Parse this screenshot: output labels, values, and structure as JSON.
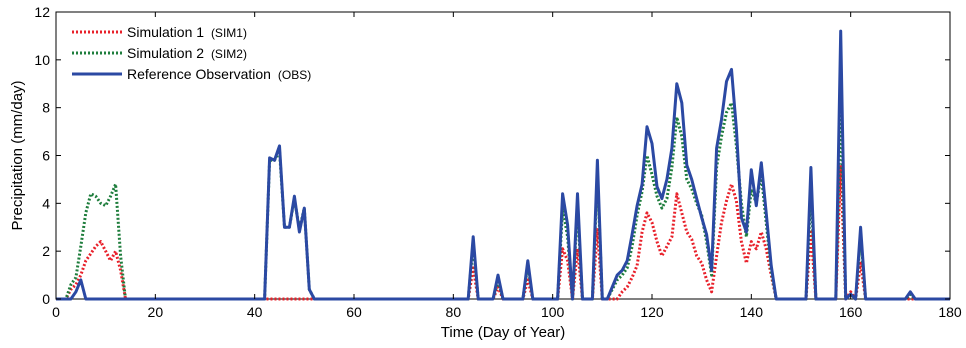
{
  "chart_data": {
    "type": "line",
    "title": "",
    "xlabel": "Time (Day of Year)",
    "ylabel": "Precipitation (mm/day)",
    "xlim": [
      0,
      180
    ],
    "ylim": [
      0,
      12
    ],
    "xticks": [
      0,
      20,
      40,
      60,
      80,
      100,
      120,
      140,
      160,
      180
    ],
    "yticks": [
      0,
      2,
      4,
      6,
      8,
      10,
      12
    ],
    "grid": false,
    "legend_position": "top-left",
    "series": [
      {
        "name": "Simulation 1",
        "tag": "(SIM1)",
        "color": "#e8202a",
        "style": "dotted",
        "x": [
          0,
          2,
          3,
          4,
          5,
          6,
          7,
          8,
          9,
          10,
          11,
          12,
          13,
          14,
          15,
          42,
          83,
          84,
          85,
          88,
          89,
          90,
          94,
          95,
          96,
          101,
          102,
          103,
          104,
          105,
          106,
          108,
          109,
          110,
          111,
          113,
          114,
          115,
          116,
          117,
          118,
          119,
          120,
          121,
          122,
          123,
          124,
          125,
          126,
          127,
          128,
          129,
          130,
          131,
          132,
          133,
          134,
          135,
          136,
          137,
          138,
          139,
          140,
          141,
          142,
          143,
          144,
          145,
          150,
          151,
          152,
          153,
          156,
          157,
          158,
          159,
          160,
          161,
          162,
          163,
          180
        ],
        "y": [
          0,
          0,
          0.4,
          0.6,
          1.0,
          1.6,
          1.9,
          2.2,
          2.4,
          2.0,
          1.6,
          2.0,
          1.2,
          0,
          0,
          0,
          0,
          1.3,
          0,
          0,
          0.5,
          0,
          0,
          0.8,
          0,
          0,
          2.1,
          1.6,
          0,
          2.1,
          0,
          0,
          2.9,
          0,
          0,
          0,
          0.3,
          0.5,
          0.9,
          1.4,
          2.8,
          3.6,
          3.2,
          2.4,
          1.8,
          2.2,
          2.6,
          4.4,
          3.6,
          2.8,
          2.5,
          1.8,
          1.5,
          0.8,
          0.3,
          1.8,
          3.2,
          4.1,
          4.8,
          4.1,
          2.4,
          1.5,
          2.4,
          2.1,
          2.8,
          2.1,
          1.0,
          0,
          0,
          0,
          2.8,
          0,
          0,
          0,
          5.6,
          0,
          0.3,
          0,
          1.5,
          0,
          0
        ]
      },
      {
        "name": "Simulation 2",
        "tag": "(SIM2)",
        "color": "#1e7d3c",
        "style": "dotted",
        "x": [
          0,
          2,
          3,
          4,
          5,
          6,
          7,
          8,
          9,
          10,
          11,
          12,
          13,
          14,
          15,
          42,
          43,
          44,
          45,
          46,
          47,
          48,
          49,
          50,
          51,
          52,
          83,
          84,
          85,
          88,
          89,
          90,
          94,
          95,
          96,
          101,
          102,
          103,
          104,
          105,
          106,
          108,
          109,
          110,
          111,
          113,
          114,
          115,
          116,
          117,
          118,
          119,
          120,
          121,
          122,
          123,
          124,
          125,
          126,
          127,
          128,
          129,
          130,
          131,
          132,
          133,
          134,
          135,
          136,
          137,
          138,
          139,
          140,
          141,
          142,
          143,
          144,
          145,
          150,
          151,
          152,
          153,
          156,
          157,
          158,
          159,
          160,
          161,
          162,
          163,
          171,
          172,
          173,
          180
        ],
        "y": [
          0,
          0,
          0.6,
          0.9,
          2.2,
          3.6,
          4.4,
          4.3,
          4.0,
          3.9,
          4.3,
          4.8,
          1.8,
          0,
          0,
          0,
          5.8,
          5.8,
          6.2,
          3.0,
          3.0,
          4.2,
          2.9,
          3.8,
          0.4,
          0,
          0,
          2.3,
          0,
          0,
          0.8,
          0,
          0,
          1.4,
          0,
          0,
          3.8,
          2.6,
          0,
          3.8,
          0,
          0,
          5.2,
          0,
          0,
          0.8,
          1.0,
          1.3,
          2.2,
          3.5,
          4.5,
          6.0,
          5.2,
          4.3,
          3.8,
          4.2,
          5.5,
          7.6,
          6.8,
          5.0,
          4.6,
          4.0,
          3.5,
          2.4,
          1.0,
          5.5,
          6.8,
          7.8,
          8.2,
          6.4,
          4.0,
          2.6,
          4.6,
          4.0,
          5.2,
          3.2,
          1.2,
          0,
          0,
          0,
          4.6,
          0,
          0,
          0,
          8.4,
          0,
          0.2,
          0,
          2.6,
          0,
          0,
          0.2,
          0,
          0
        ]
      },
      {
        "name": "Reference Observation",
        "tag": "(OBS)",
        "color": "#2b49a3",
        "style": "solid",
        "x": [
          0,
          2,
          3,
          4,
          5,
          6,
          7,
          42,
          43,
          44,
          45,
          46,
          47,
          48,
          49,
          50,
          51,
          52,
          83,
          84,
          85,
          88,
          89,
          90,
          94,
          95,
          96,
          101,
          102,
          103,
          104,
          105,
          106,
          108,
          109,
          110,
          111,
          113,
          114,
          115,
          116,
          117,
          118,
          119,
          120,
          121,
          122,
          123,
          124,
          125,
          126,
          127,
          128,
          129,
          130,
          131,
          132,
          133,
          134,
          135,
          136,
          137,
          138,
          139,
          140,
          141,
          142,
          143,
          144,
          145,
          150,
          151,
          152,
          153,
          156,
          157,
          158,
          159,
          160,
          161,
          162,
          163,
          171,
          172,
          173,
          180
        ],
        "y": [
          0,
          0,
          0,
          0.3,
          0.8,
          0,
          0,
          0,
          5.9,
          5.8,
          6.4,
          3.0,
          3.0,
          4.3,
          2.8,
          3.8,
          0.4,
          0,
          0,
          2.6,
          0,
          0,
          1.0,
          0,
          0,
          1.6,
          0,
          0,
          4.4,
          3.1,
          0,
          4.4,
          0,
          0,
          5.8,
          0,
          0,
          1.0,
          1.2,
          1.6,
          2.7,
          3.9,
          4.8,
          7.2,
          6.5,
          4.7,
          4.2,
          5.0,
          6.3,
          9.0,
          8.2,
          5.6,
          5.0,
          4.2,
          3.4,
          2.7,
          1.2,
          6.3,
          7.5,
          9.1,
          9.6,
          7.1,
          3.4,
          2.8,
          5.4,
          3.9,
          5.7,
          3.6,
          1.4,
          0,
          0,
          0,
          5.5,
          0,
          0,
          0,
          11.2,
          0,
          0.2,
          0,
          3.0,
          0,
          0,
          0.3,
          0,
          0
        ]
      }
    ]
  }
}
